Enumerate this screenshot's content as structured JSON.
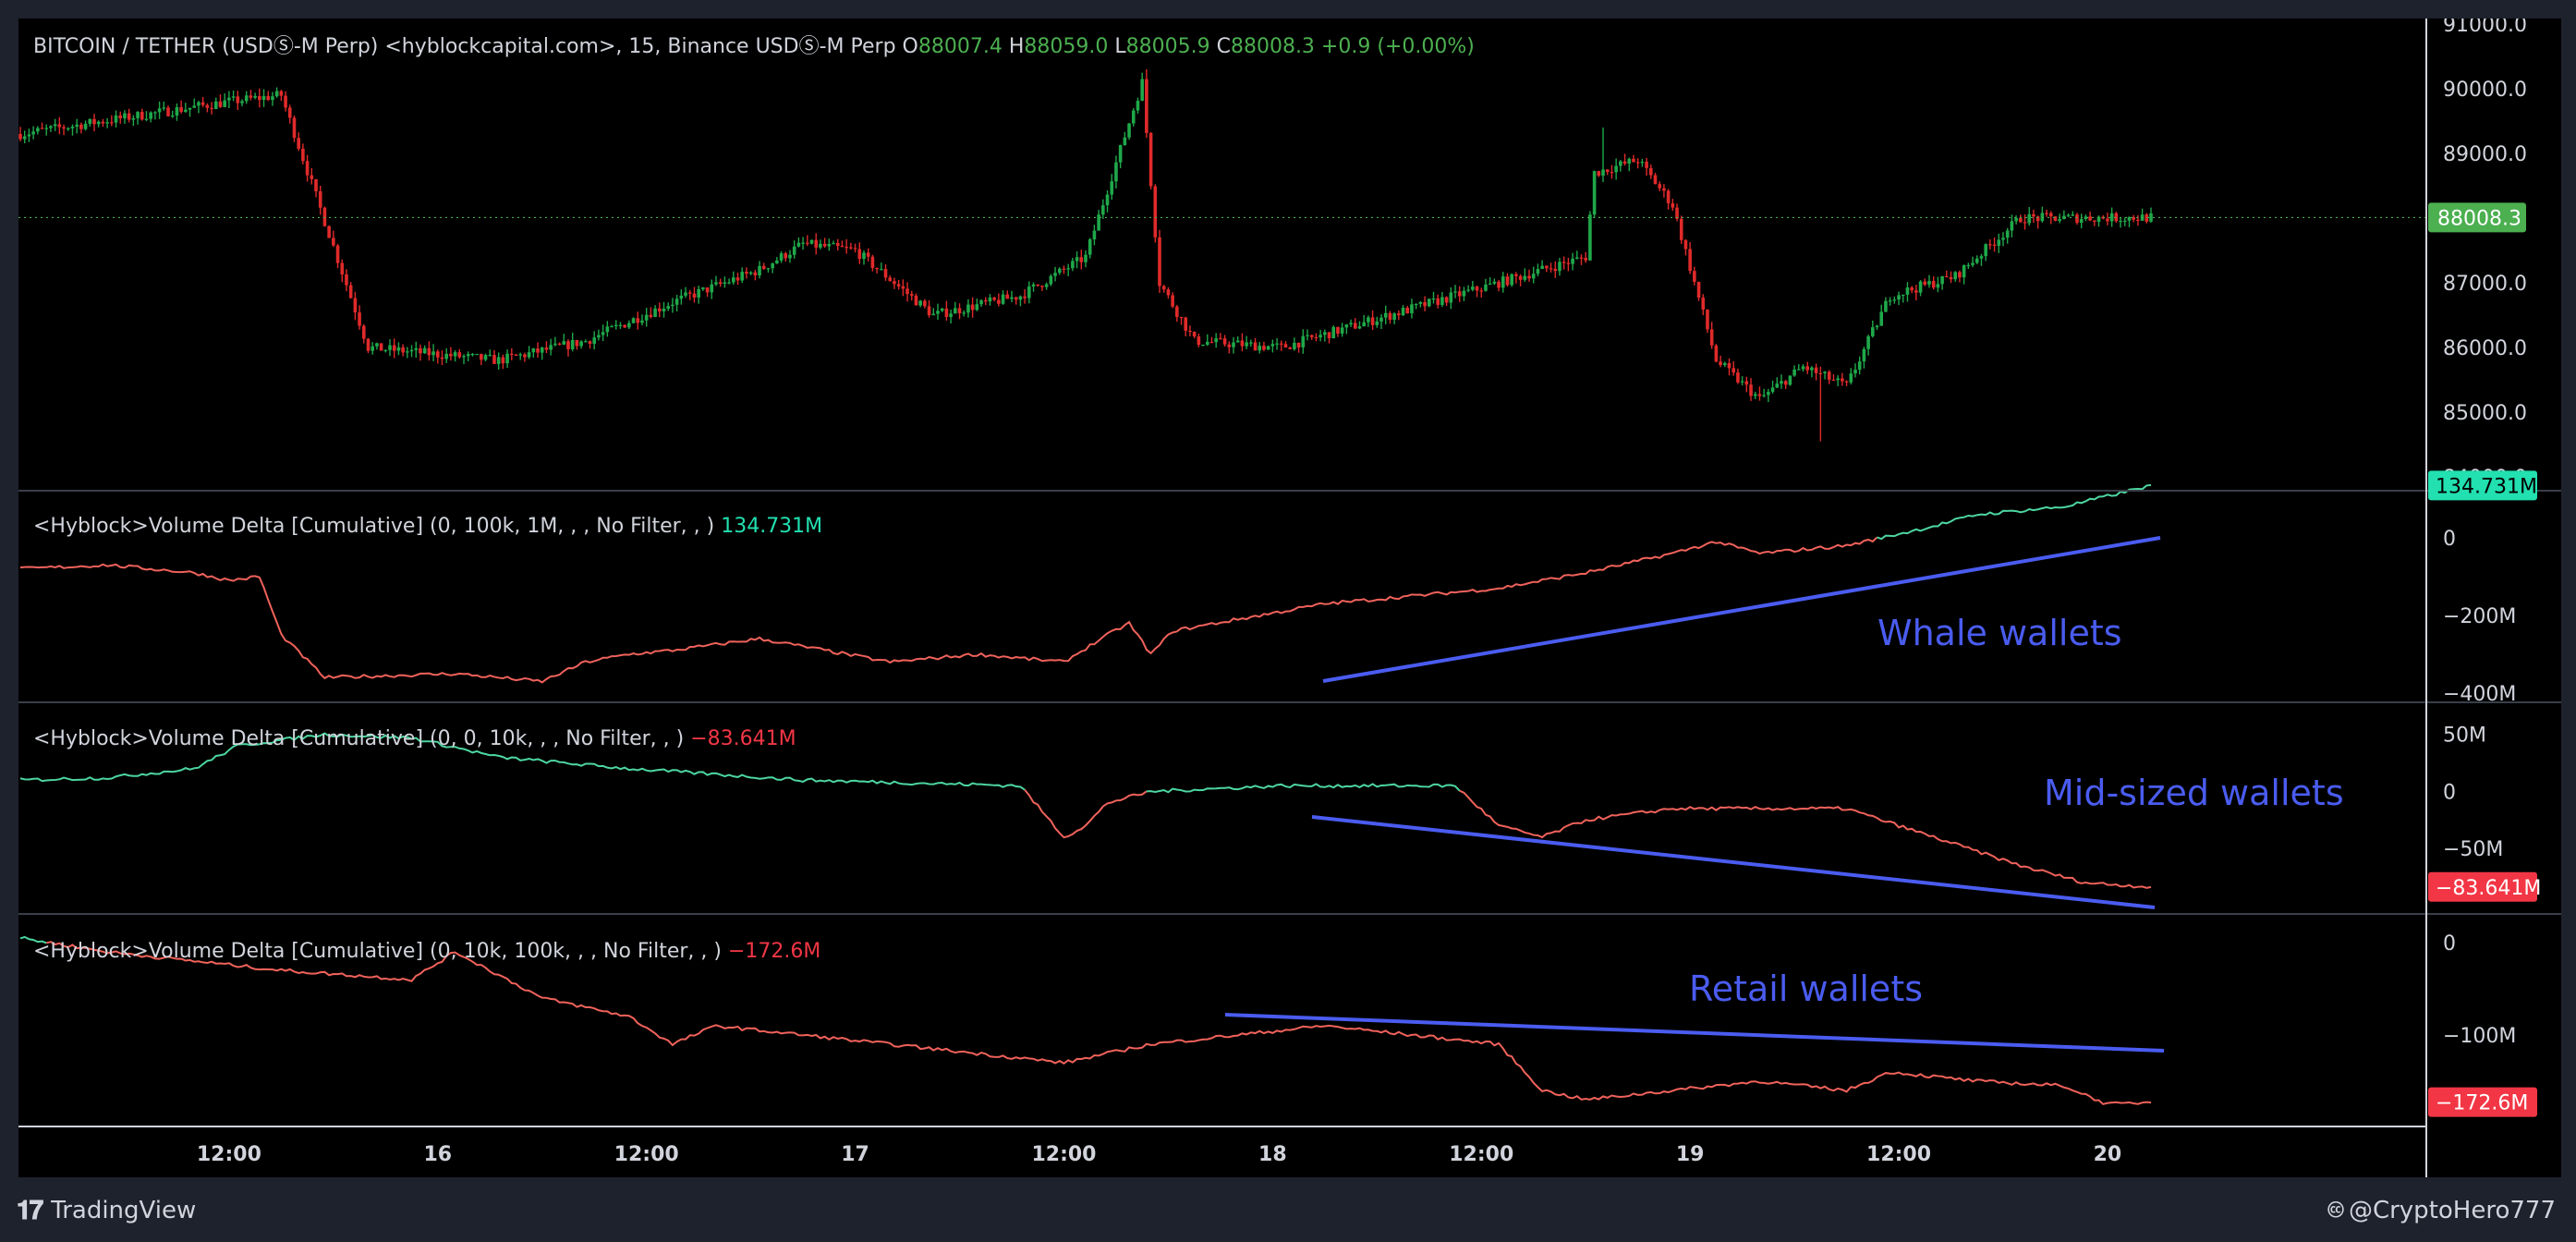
{
  "brand": {
    "name": "TradingView",
    "icon": "tradingview-logo-icon"
  },
  "credit": {
    "text": "@CryptoHero777",
    "icon": "creative-commons-icon"
  },
  "colors": {
    "up": "#26a69a",
    "down": "#ef5350",
    "candle_up": "#1fa84a",
    "candle_down": "#e02a2a",
    "line_up": "#4dd6a0",
    "line_down": "#f0625b",
    "trend": "#4a5cf0",
    "label_green": "#4caf50",
    "label_red": "#f23645",
    "label_teal": "#22e0b0",
    "annotation": "#4a5cf0",
    "text": "#d1d4dc",
    "bg": "#000000"
  },
  "x_axis": {
    "ticks": [
      {
        "label": "12:00",
        "i": 48
      },
      {
        "label": "16",
        "i": 96
      },
      {
        "label": "12:00",
        "i": 144
      },
      {
        "label": "17",
        "i": 192
      },
      {
        "label": "12:00",
        "i": 240
      },
      {
        "label": "18",
        "i": 288
      },
      {
        "label": "12:00",
        "i": 336
      },
      {
        "label": "19",
        "i": 384
      },
      {
        "label": "12:00",
        "i": 432
      },
      {
        "label": "20",
        "i": 480
      }
    ]
  },
  "price_pane": {
    "legend_title": "BITCOIN / TETHER (USDⓈ-M Perp) <hyblockcapital.com>, 15, Binance USDⓈ-M Perp",
    "o_key": "O",
    "o_val": "88007.4",
    "h_key": "H",
    "h_val": "88059.0",
    "l_key": "L",
    "l_val": "88005.9",
    "c_key": "C",
    "c_val": "88008.3",
    "change": "+0.9 (+0.00%)",
    "last_label": "88008.3",
    "y_labels": [
      "91000.0",
      "90000.0",
      "89000.0",
      "88000.0",
      "87000.0",
      "86000.0",
      "85000.0",
      "84000.0"
    ]
  },
  "whale_pane": {
    "legend": "<Hyblock>Volume Delta [Cumulative] (0, 100k, 1M, , , No Filter, , )",
    "value": "134.731M",
    "annotation": "Whale wallets",
    "y_labels": [
      "0",
      "−200M",
      "−400M"
    ],
    "last_label": "134.731M"
  },
  "mid_pane": {
    "legend": "<Hyblock>Volume Delta [Cumulative] (0, 0, 10k, , , No Filter, , )",
    "value": "−83.641M",
    "annotation": "Mid-sized wallets",
    "y_labels": [
      "50M",
      "0",
      "−50M"
    ],
    "last_label": "−83.641M"
  },
  "retail_pane": {
    "legend": "<Hyblock>Volume Delta [Cumulative] (0, 10k, 100k, , , No Filter, , )",
    "value": "−172.6M",
    "annotation": "Retail wallets",
    "y_labels": [
      "0",
      "−100M"
    ],
    "last_label": "−172.6M"
  },
  "chart_data": [
    {
      "type": "candlestick",
      "interval": "15m",
      "y_unit": "USDT",
      "ylim": [
        84000,
        91000
      ],
      "x": [
        "15 08:00",
        "15 12:00",
        "15 16:00",
        "16 00:00",
        "16 04:00",
        "16 08:00",
        "16 12:00",
        "16 16:00",
        "16 20:00",
        "17 00:00",
        "17 04:00",
        "17 08:00",
        "17 12:00",
        "17 13:00",
        "17 13:30",
        "17 16:00",
        "17 20:00",
        "18 00:00",
        "18 04:00",
        "18 08:00",
        "18 12:00",
        "18 13:00",
        "18 14:00",
        "18 16:00",
        "18 17:00",
        "18 18:00",
        "18 20:00",
        "19 00:00",
        "19 02:00",
        "19 04:00",
        "19 08:00",
        "19 12:00"
      ],
      "close": [
        89300,
        89800,
        89900,
        86000,
        85800,
        86100,
        86700,
        87200,
        87600,
        87500,
        86500,
        86800,
        87400,
        90100,
        87000,
        86100,
        86000,
        86400,
        86800,
        87100,
        87400,
        88700,
        88900,
        88200,
        85800,
        85200,
        85700,
        85400,
        86800,
        87100,
        88000,
        88008
      ],
      "high_points": [
        {
          "x": "17 13:00",
          "value": 90300
        },
        {
          "x": "18 13:30",
          "value": 89400
        }
      ],
      "low_points": [
        {
          "x": "19 00:00",
          "value": 84600
        }
      ]
    },
    {
      "type": "line",
      "name": "Volume Delta [Cumulative] (0, 100k, 1M)",
      "ylim": [
        -400,
        100
      ],
      "y_unit": "M",
      "x": [
        0,
        20,
        40,
        48,
        55,
        60,
        70,
        100,
        120,
        130,
        140,
        150,
        170,
        190,
        200,
        220,
        240,
        250,
        255,
        260,
        265,
        280,
        300,
        320,
        340,
        350,
        360,
        380,
        390,
        400,
        420,
        440,
        450,
        470,
        490
      ],
      "values": [
        -80,
        -70,
        -90,
        -110,
        -100,
        -250,
        -360,
        -350,
        -370,
        -320,
        -300,
        -290,
        -260,
        -300,
        -320,
        -300,
        -320,
        -250,
        -220,
        -300,
        -240,
        -210,
        -170,
        -150,
        -130,
        -110,
        -90,
        -40,
        -10,
        -40,
        -20,
        30,
        60,
        80,
        134.731
      ]
    },
    {
      "type": "line",
      "name": "Volume Delta [Cumulative] (0, 0, 10k)",
      "ylim": [
        -100,
        70
      ],
      "y_unit": "M",
      "x": [
        0,
        20,
        40,
        50,
        70,
        90,
        110,
        140,
        160,
        180,
        200,
        230,
        240,
        245,
        250,
        260,
        290,
        330,
        340,
        350,
        360,
        380,
        390,
        420,
        440,
        460,
        475,
        490
      ],
      "values": [
        10,
        12,
        20,
        40,
        50,
        47,
        30,
        20,
        15,
        10,
        8,
        5,
        -40,
        -30,
        -10,
        0,
        5,
        5,
        -30,
        -40,
        -25,
        -15,
        -15,
        -15,
        -40,
        -65,
        -80,
        -83.641
      ]
    },
    {
      "type": "line",
      "name": "Volume Delta [Cumulative] (0, 10k, 100k)",
      "ylim": [
        -190,
        20
      ],
      "y_unit": "M",
      "x": [
        0,
        20,
        40,
        60,
        90,
        100,
        120,
        140,
        150,
        160,
        200,
        240,
        250,
        260,
        280,
        300,
        320,
        340,
        350,
        360,
        400,
        420,
        430,
        450,
        470,
        480,
        490
      ],
      "values": [
        5,
        -10,
        -20,
        -30,
        -40,
        -10,
        -60,
        -80,
        -110,
        -90,
        -110,
        -130,
        -120,
        -110,
        -100,
        -90,
        -100,
        -110,
        -160,
        -170,
        -150,
        -160,
        -140,
        -150,
        -155,
        -175,
        -172.6
      ]
    }
  ]
}
